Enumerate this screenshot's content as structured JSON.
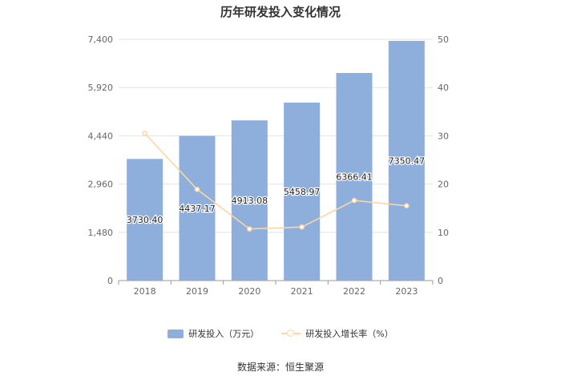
{
  "chart_data": {
    "type": "bar",
    "title": "历年研发投入变化情况",
    "categories": [
      "2018",
      "2019",
      "2020",
      "2021",
      "2022",
      "2023"
    ],
    "series": [
      {
        "name": "研发投入（万元）",
        "type": "bar",
        "axis": "left",
        "values": [
          3730.4,
          4437.17,
          4913.08,
          5458.97,
          6366.41,
          7350.47
        ],
        "labels": [
          "3730.40",
          "4437.17",
          "4913.08",
          "5458.97",
          "6366.41",
          "7350.47"
        ],
        "color": "#8eaedc"
      },
      {
        "name": "研发投入增长率（%）",
        "type": "line",
        "axis": "right",
        "values": [
          30.5,
          18.9,
          10.7,
          11.1,
          16.6,
          15.5
        ],
        "color": "#fcd6a4"
      }
    ],
    "y_left": {
      "ticks": [
        "0",
        "1,480",
        "2,960",
        "4,440",
        "5,920",
        "7,400"
      ],
      "range": [
        0,
        7400
      ]
    },
    "y_right": {
      "ticks": [
        "0",
        "10",
        "20",
        "30",
        "40",
        "50"
      ],
      "range": [
        0,
        50
      ]
    },
    "grid": true,
    "legend_position": "bottom"
  },
  "source": "数据来源：恒生聚源"
}
